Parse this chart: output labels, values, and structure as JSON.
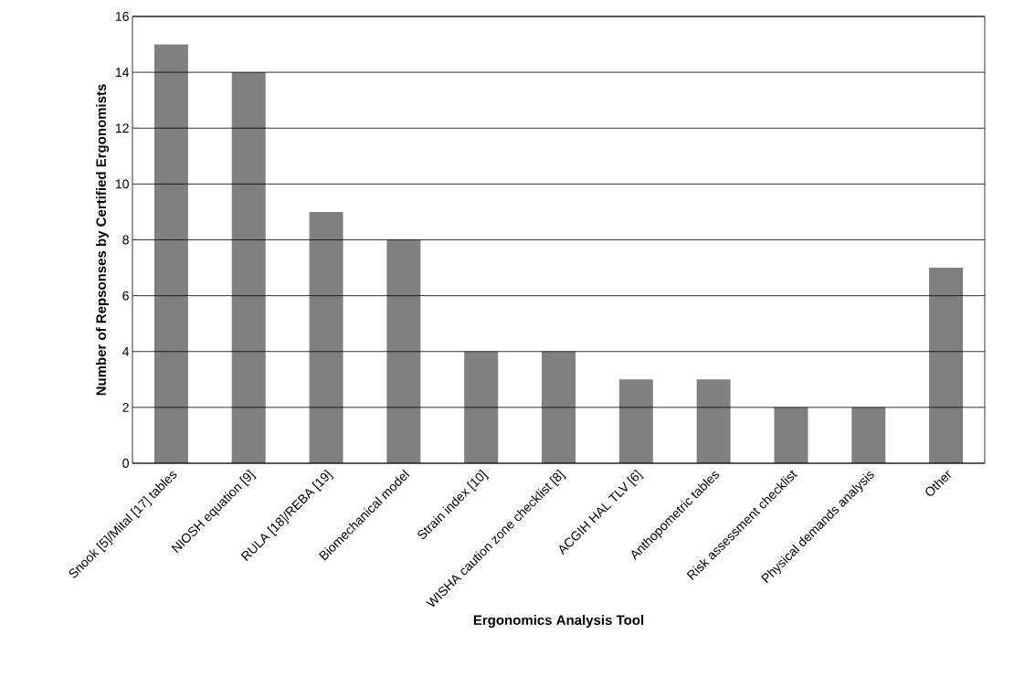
{
  "chart_data": {
    "type": "bar",
    "xlabel": "Ergonomics Analysis Tool",
    "ylabel": "Number of Repsonses by Certified Ergonomists",
    "categories": [
      "Snook [5]/Mital [17] tables",
      "NIOSH equation [9]",
      "RULA [18]/REBA [19]",
      "Biomechanical model",
      "Strain index [10]",
      "WISHA caution zone checklist [8]",
      "ACGIH HAL TLV [6]",
      "Anthopometric tables",
      "Risk assessment checklist",
      "Physical demands analysis",
      "Other"
    ],
    "values": [
      15,
      14,
      9,
      8,
      4,
      4,
      3,
      3,
      2,
      2,
      7
    ],
    "color": "#808080",
    "ylim": [
      0,
      16
    ],
    "yticks": [
      0,
      2,
      4,
      6,
      8,
      10,
      12,
      14,
      16
    ],
    "grid": "y"
  }
}
